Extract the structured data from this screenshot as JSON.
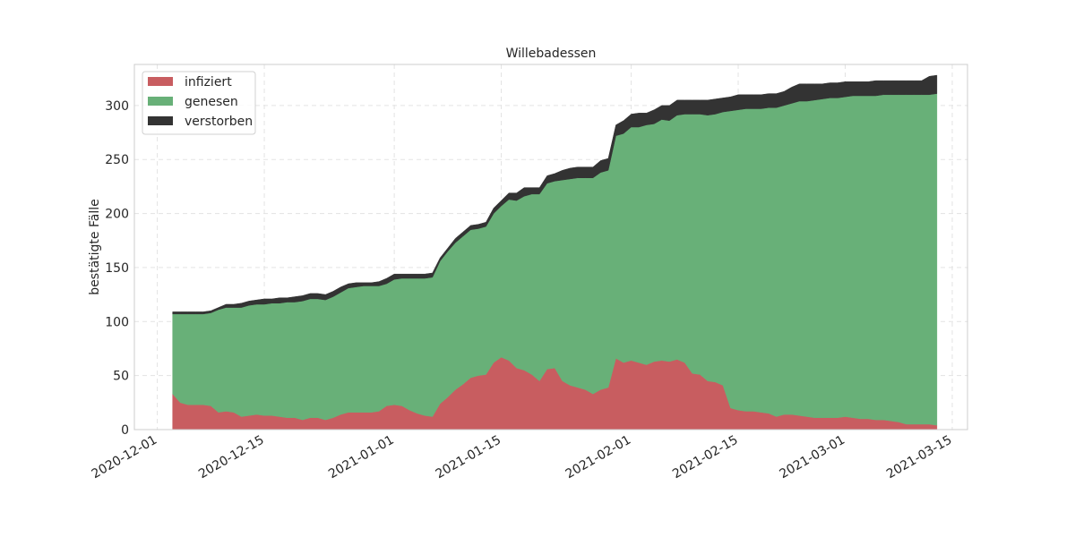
{
  "chart_data": {
    "type": "area",
    "stacked": true,
    "title": "Willebadessen",
    "ylabel": "bestätigte Fälle",
    "xlabel": "",
    "xlim": [
      "2020-11-28",
      "2021-03-17"
    ],
    "ylim": [
      0,
      338
    ],
    "grid": true,
    "legend_position": "top-left",
    "xticks": [
      "2020-12-01",
      "2020-12-15",
      "2021-01-01",
      "2021-01-15",
      "2021-02-01",
      "2021-02-15",
      "2021-03-01",
      "2021-03-15"
    ],
    "yticks": [
      0,
      50,
      100,
      150,
      200,
      250,
      300
    ],
    "x": [
      "2020-12-03",
      "2020-12-04",
      "2020-12-05",
      "2020-12-06",
      "2020-12-07",
      "2020-12-08",
      "2020-12-09",
      "2020-12-10",
      "2020-12-11",
      "2020-12-12",
      "2020-12-13",
      "2020-12-14",
      "2020-12-15",
      "2020-12-16",
      "2020-12-17",
      "2020-12-18",
      "2020-12-19",
      "2020-12-20",
      "2020-12-21",
      "2020-12-22",
      "2020-12-23",
      "2020-12-24",
      "2020-12-25",
      "2020-12-26",
      "2020-12-27",
      "2020-12-28",
      "2020-12-29",
      "2020-12-30",
      "2020-12-31",
      "2021-01-01",
      "2021-01-02",
      "2021-01-03",
      "2021-01-04",
      "2021-01-05",
      "2021-01-06",
      "2021-01-07",
      "2021-01-08",
      "2021-01-09",
      "2021-01-10",
      "2021-01-11",
      "2021-01-12",
      "2021-01-13",
      "2021-01-14",
      "2021-01-15",
      "2021-01-16",
      "2021-01-17",
      "2021-01-18",
      "2021-01-19",
      "2021-01-20",
      "2021-01-21",
      "2021-01-22",
      "2021-01-23",
      "2021-01-24",
      "2021-01-25",
      "2021-01-26",
      "2021-01-27",
      "2021-01-28",
      "2021-01-29",
      "2021-01-30",
      "2021-01-31",
      "2021-02-01",
      "2021-02-02",
      "2021-02-03",
      "2021-02-04",
      "2021-02-05",
      "2021-02-06",
      "2021-02-07",
      "2021-02-08",
      "2021-02-09",
      "2021-02-10",
      "2021-02-11",
      "2021-02-12",
      "2021-02-13",
      "2021-02-14",
      "2021-02-15",
      "2021-02-16",
      "2021-02-17",
      "2021-02-18",
      "2021-02-19",
      "2021-02-20",
      "2021-02-21",
      "2021-02-22",
      "2021-02-23",
      "2021-02-24",
      "2021-02-25",
      "2021-02-26",
      "2021-02-27",
      "2021-02-28",
      "2021-03-01",
      "2021-03-02",
      "2021-03-03",
      "2021-03-04",
      "2021-03-05",
      "2021-03-06",
      "2021-03-07",
      "2021-03-08",
      "2021-03-09",
      "2021-03-10",
      "2021-03-11",
      "2021-03-12",
      "2021-03-13"
    ],
    "series": [
      {
        "name": "infiziert",
        "color": "#c85d60",
        "values": [
          33,
          25,
          23,
          23,
          23,
          22,
          16,
          17,
          16,
          12,
          13,
          14,
          13,
          13,
          12,
          11,
          11,
          9,
          11,
          11,
          9,
          11,
          14,
          16,
          16,
          16,
          16,
          17,
          22,
          23,
          22,
          18,
          15,
          13,
          12,
          24,
          30,
          37,
          42,
          48,
          50,
          51,
          62,
          67,
          64,
          57,
          55,
          51,
          45,
          56,
          57,
          45,
          41,
          39,
          37,
          33,
          37,
          39,
          66,
          62,
          64,
          62,
          60,
          63,
          64,
          63,
          65,
          62,
          52,
          51,
          45,
          44,
          41,
          20,
          18,
          17,
          17,
          16,
          15,
          12,
          14,
          14,
          13,
          12,
          11,
          11,
          11,
          11,
          12,
          11,
          10,
          10,
          9,
          9,
          8,
          7,
          5,
          5,
          5,
          5,
          4
        ],
        "cumulative_top": [
          107,
          107,
          107,
          107,
          107,
          108,
          111,
          113,
          113,
          113,
          115,
          116,
          116,
          117,
          117,
          118,
          118,
          119,
          121,
          121,
          120,
          123,
          127,
          131,
          132,
          133,
          133,
          133,
          135,
          139,
          140,
          140,
          140,
          140,
          141,
          156,
          165,
          173,
          179,
          185,
          186,
          188,
          200,
          207,
          213,
          212,
          216,
          218,
          218,
          228,
          230,
          231,
          232,
          233,
          233,
          233,
          238,
          240,
          272,
          274,
          280,
          280,
          282,
          283,
          287,
          286,
          291,
          292,
          292,
          292,
          291,
          292,
          294,
          295,
          296,
          297,
          297,
          297,
          298,
          298,
          300,
          302,
          304,
          304,
          305,
          306,
          307,
          307,
          308,
          309,
          309,
          309,
          309,
          310,
          310,
          310,
          310,
          310,
          310,
          310,
          311
        ]
      },
      {
        "name": "genesen",
        "color": "#68b078"
      },
      {
        "name": "verstorben",
        "color": "#333333",
        "total_top": [
          109,
          109,
          109,
          109,
          109,
          110,
          113,
          116,
          116,
          117,
          119,
          120,
          121,
          121,
          122,
          122,
          123,
          124,
          126,
          126,
          125,
          128,
          132,
          135,
          136,
          136,
          136,
          137,
          140,
          144,
          144,
          144,
          144,
          144,
          145,
          159,
          168,
          177,
          183,
          189,
          190,
          192,
          205,
          212,
          219,
          219,
          224,
          224,
          224,
          235,
          237,
          240,
          242,
          243,
          243,
          243,
          249,
          251,
          282,
          286,
          292,
          293,
          293,
          296,
          300,
          300,
          305,
          305,
          305,
          305,
          305,
          306,
          307,
          308,
          310,
          310,
          310,
          310,
          311,
          311,
          313,
          317,
          320,
          320,
          320,
          320,
          321,
          321,
          322,
          322,
          322,
          322,
          323,
          323,
          323,
          323,
          323,
          323,
          323,
          327,
          328
        ]
      }
    ]
  }
}
